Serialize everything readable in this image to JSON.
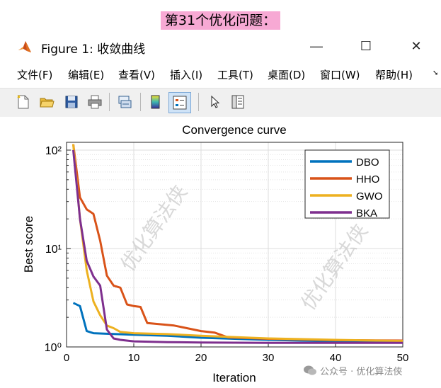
{
  "banner": {
    "text": "第31个优化问题："
  },
  "window": {
    "title": "Figure 1: 收敛曲线",
    "minimize": "—",
    "maximize": "☐",
    "close": "✕"
  },
  "menu": {
    "items": [
      "文件(F)",
      "编辑(E)",
      "查看(V)",
      "插入(I)",
      "工具(T)",
      "桌面(D)",
      "窗口(W)",
      "帮助(H)"
    ],
    "overflow": "➘"
  },
  "toolbar": {
    "icons": [
      "new-figure-icon",
      "open-folder-icon",
      "save-icon",
      "print-icon",
      "link-plot-icon",
      "colorbar-icon",
      "legend-icon",
      "pointer-icon",
      "property-inspector-icon"
    ]
  },
  "watermark": {
    "diagonal_text": "优化算法侠",
    "footer": "公众号 · 优化算法侠"
  },
  "chart_data": {
    "type": "line",
    "title": "Convergence curve",
    "xlabel": "Iteration",
    "ylabel": "Best score",
    "xlim": [
      0,
      50
    ],
    "ylim": [
      1,
      120
    ],
    "yscale": "log",
    "xticks": [
      0,
      10,
      20,
      30,
      40,
      50
    ],
    "yticks": [
      1,
      10,
      100
    ],
    "ytick_labels": [
      "10⁰",
      "10¹",
      "10²"
    ],
    "grid": true,
    "legend_position": "top-right",
    "series": [
      {
        "name": "DBO",
        "color": "#0072BD",
        "x": [
          1,
          2,
          3,
          4,
          6,
          10,
          15,
          20,
          30,
          40,
          50
        ],
        "values": [
          2.8,
          2.6,
          1.45,
          1.38,
          1.36,
          1.33,
          1.3,
          1.24,
          1.18,
          1.14,
          1.13
        ]
      },
      {
        "name": "HHO",
        "color": "#D95319",
        "x": [
          1,
          2,
          3,
          4,
          5,
          6,
          7,
          8,
          9,
          10,
          11,
          12,
          14,
          16,
          20,
          22,
          24,
          30,
          40,
          50
        ],
        "values": [
          115,
          33,
          25,
          22.5,
          12,
          5.3,
          4.2,
          4.0,
          2.7,
          2.6,
          2.55,
          1.75,
          1.7,
          1.65,
          1.45,
          1.4,
          1.25,
          1.21,
          1.17,
          1.16
        ]
      },
      {
        "name": "GWO",
        "color": "#EDB120",
        "x": [
          1,
          2,
          3,
          4,
          5,
          6,
          7,
          8,
          10,
          15,
          20,
          30,
          40,
          50
        ],
        "values": [
          115,
          20,
          6,
          2.9,
          2.1,
          1.65,
          1.55,
          1.42,
          1.38,
          1.35,
          1.3,
          1.22,
          1.18,
          1.15
        ]
      },
      {
        "name": "BKA",
        "color": "#7E2F8E",
        "x": [
          1,
          2,
          3,
          4,
          5,
          6,
          7,
          8,
          10,
          15,
          20,
          30,
          40,
          50
        ],
        "values": [
          100,
          20,
          7.5,
          5.2,
          4.2,
          1.5,
          1.22,
          1.18,
          1.14,
          1.12,
          1.11,
          1.1,
          1.1,
          1.1
        ]
      }
    ]
  }
}
